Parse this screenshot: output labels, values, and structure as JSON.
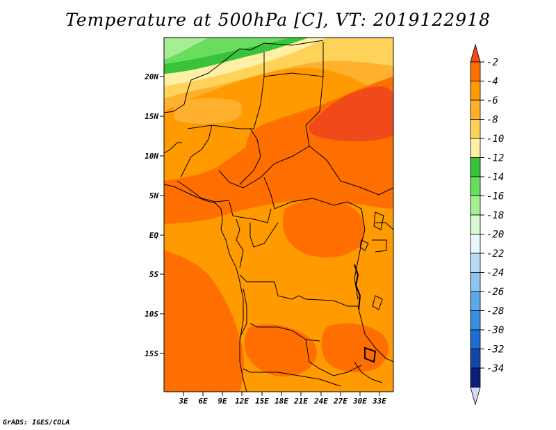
{
  "title": "Temperature at 500hPa [C], VT: 2019122918",
  "credit": "GrADS: IGES/COLA",
  "map": {
    "lat_labels": [
      "20N",
      "15N",
      "10N",
      "5N",
      "EQ",
      "5S",
      "10S",
      "15S"
    ],
    "lon_labels": [
      "3E",
      "6E",
      "9E",
      "12E",
      "15E",
      "18E",
      "21E",
      "24E",
      "27E",
      "30E",
      "33E"
    ]
  },
  "colorbar": {
    "labels": [
      "-2",
      "-4",
      "-6",
      "-8",
      "-10",
      "-12",
      "-14",
      "-16",
      "-18",
      "-20",
      "-22",
      "-24",
      "-26",
      "-28",
      "-30",
      "-32",
      "-34"
    ],
    "colors": [
      "#f04a1a",
      "#ff6e00",
      "#ff9a00",
      "#ffb02e",
      "#ffd35a",
      "#fff0a6",
      "#39c23b",
      "#68dd5e",
      "#a6ee94",
      "#d8f8d0",
      "#e8f6ff",
      "#b8dcf6",
      "#8cc4ef",
      "#5ea8e8",
      "#3a8ee0",
      "#1f6bcf",
      "#1346a8",
      "#0a1f7a",
      "#d6dbf6"
    ]
  }
}
